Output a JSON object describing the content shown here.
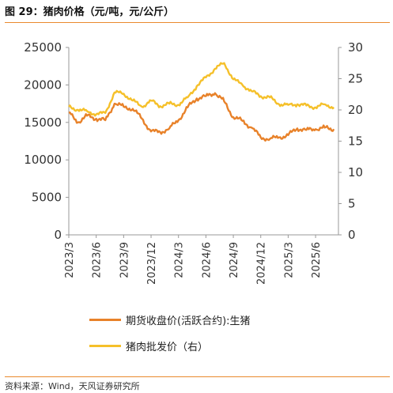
{
  "header": {
    "title": "图 29：猪肉价格（元/吨，元/公斤）"
  },
  "footer": {
    "source": "资料来源：Wind，天风证券研究所"
  },
  "chart_data": {
    "type": "line",
    "x_tick_labels": [
      "2023/3",
      "2023/6",
      "2023/9",
      "2023/12",
      "2024/3",
      "2024/6",
      "2024/9",
      "2024/12",
      "2025/3",
      "2025/6"
    ],
    "x_range": [
      "2023/03",
      "2025/08"
    ],
    "y_left": {
      "range": [
        0,
        25000
      ],
      "ticks": [
        0,
        5000,
        10000,
        15000,
        20000,
        25000
      ]
    },
    "y_right": {
      "range": [
        0,
        30
      ],
      "ticks": [
        0,
        5,
        10,
        15,
        20,
        25,
        30
      ]
    },
    "grid": false,
    "legend_position": "bottom",
    "series": [
      {
        "name": "期货收盘价(活跃合约):生猪",
        "axis": "left",
        "color": "#e8822a",
        "points": [
          [
            "2023/03",
            16300
          ],
          [
            "2023/04",
            15000
          ],
          [
            "2023/05",
            15900
          ],
          [
            "2023/06",
            15500
          ],
          [
            "2023/07",
            15300
          ],
          [
            "2023/08",
            17500
          ],
          [
            "2023/09",
            17100
          ],
          [
            "2023/10",
            16800
          ],
          [
            "2023/11",
            15500
          ],
          [
            "2023/12",
            13800
          ],
          [
            "2024/01",
            13700
          ],
          [
            "2024/02",
            14200
          ],
          [
            "2024/03",
            15300
          ],
          [
            "2024/04",
            17000
          ],
          [
            "2024/05",
            18200
          ],
          [
            "2024/06",
            18500
          ],
          [
            "2024/07",
            18900
          ],
          [
            "2024/08",
            17800
          ],
          [
            "2024/09",
            15700
          ],
          [
            "2024/10",
            15200
          ],
          [
            "2024/11",
            14300
          ],
          [
            "2024/12",
            13000
          ],
          [
            "2025/01",
            12800
          ],
          [
            "2025/02",
            13000
          ],
          [
            "2025/03",
            13300
          ],
          [
            "2025/04",
            14200
          ],
          [
            "2025/05",
            14000
          ],
          [
            "2025/06",
            14100
          ],
          [
            "2025/07",
            14300
          ],
          [
            "2025/08",
            14100
          ]
        ]
      },
      {
        "name": "猪肉批发价（右）",
        "axis": "right",
        "color": "#f5c02a",
        "points": [
          [
            "2023/03",
            20.5
          ],
          [
            "2023/04",
            20.0
          ],
          [
            "2023/05",
            19.8
          ],
          [
            "2023/06",
            19.3
          ],
          [
            "2023/07",
            19.5
          ],
          [
            "2023/08",
            22.8
          ],
          [
            "2023/09",
            22.6
          ],
          [
            "2023/10",
            21.5
          ],
          [
            "2023/11",
            20.5
          ],
          [
            "2023/12",
            21.5
          ],
          [
            "2024/01",
            20.6
          ],
          [
            "2024/02",
            21.0
          ],
          [
            "2024/03",
            20.8
          ],
          [
            "2024/04",
            22.0
          ],
          [
            "2024/05",
            23.8
          ],
          [
            "2024/06",
            25.2
          ],
          [
            "2024/07",
            26.6
          ],
          [
            "2024/08",
            27.5
          ],
          [
            "2024/09",
            24.9
          ],
          [
            "2024/10",
            24.0
          ],
          [
            "2024/11",
            23.0
          ],
          [
            "2024/12",
            22.2
          ],
          [
            "2025/01",
            22.0
          ],
          [
            "2025/02",
            20.9
          ],
          [
            "2025/03",
            20.8
          ],
          [
            "2025/04",
            20.9
          ],
          [
            "2025/05",
            20.7
          ],
          [
            "2025/06",
            20.4
          ],
          [
            "2025/07",
            20.9
          ],
          [
            "2025/08",
            20.4
          ]
        ]
      }
    ]
  }
}
